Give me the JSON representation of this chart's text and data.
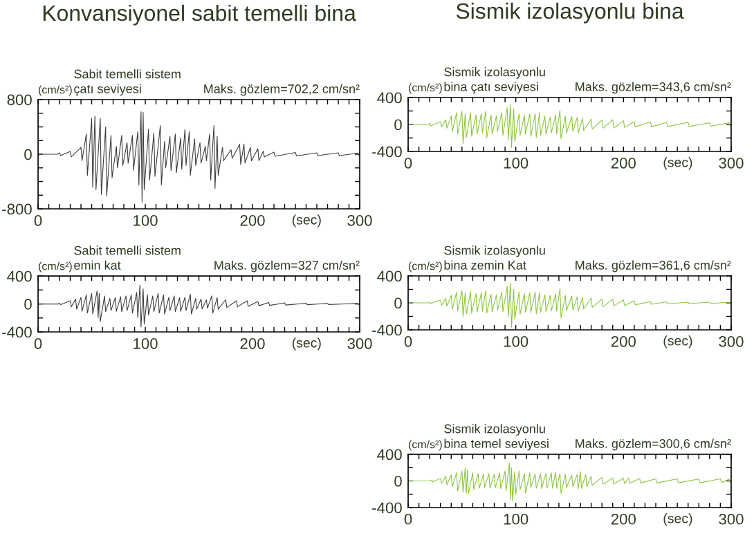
{
  "chart_data": [
    {
      "type": "line",
      "title": "Konvansiyonel sabit temelli bina",
      "subtitle": "Sabit temelli sistem\nçatı seviyesi",
      "ylabel": "(cm/s²)",
      "xlabel": "(sec)",
      "annotations": [
        "Maks. gözlem=702,2 cm/sn²"
      ],
      "xlim": [
        0,
        300
      ],
      "ylim": [
        -800,
        800
      ],
      "xticks": [
        0,
        {
          "value": 10,
          "label": null
        },
        {
          "value": 20,
          "label": null
        },
        {
          "value": 30,
          "label": null
        },
        {
          "value": 40,
          "label": null
        },
        {
          "value": 50,
          "label": null
        },
        {
          "value": 60,
          "label": null
        },
        {
          "value": 70,
          "label": null
        },
        {
          "value": 80,
          "label": null
        },
        {
          "value": 90,
          "label": null
        },
        100,
        {
          "value": 110,
          "label": null
        },
        {
          "value": 120,
          "label": null
        },
        {
          "value": 130,
          "label": null
        },
        {
          "value": 140,
          "label": null
        },
        {
          "value": 150,
          "label": null
        },
        {
          "value": 160,
          "label": null
        },
        {
          "value": 170,
          "label": null
        },
        {
          "value": 180,
          "label": null
        },
        {
          "value": 190,
          "label": null
        },
        200,
        {
          "value": 210,
          "label": null
        },
        {
          "value": 220,
          "label": null
        },
        {
          "value": 230,
          "label": null
        },
        {
          "value": 240,
          "label": null
        },
        {
          "value": 250,
          "label": null
        },
        {
          "value": 260,
          "label": null
        },
        {
          "value": 270,
          "label": null
        },
        {
          "value": 280,
          "label": null
        },
        {
          "value": 290,
          "label": null
        },
        300
      ],
      "yticks": [
        -800,
        {
          "value": -600,
          "label": null
        },
        {
          "value": -400,
          "label": null
        },
        {
          "value": -200,
          "label": null
        },
        0,
        {
          "value": 200,
          "label": null
        },
        {
          "value": 400,
          "label": null
        },
        {
          "value": 600,
          "label": null
        },
        800
      ],
      "series": [
        {
          "color": "#3d3d3d",
          "x": [
            0,
            18,
            20,
            21,
            30,
            31,
            40,
            41,
            45,
            46,
            50,
            51,
            53,
            54,
            58,
            59,
            63,
            64,
            68,
            69,
            73,
            74,
            78,
            79,
            83,
            84,
            88,
            89,
            93,
            94,
            96,
            97,
            98,
            99,
            103,
            104,
            108,
            109,
            114,
            115,
            118,
            119,
            123,
            124,
            128,
            129,
            133,
            134,
            137,
            138,
            141,
            142,
            146,
            147,
            151,
            152,
            156,
            157,
            160,
            161,
            164,
            165,
            167,
            168,
            172,
            173,
            180,
            181,
            188,
            189,
            192,
            193,
            198,
            199,
            205,
            206,
            210,
            211,
            220,
            221,
            240,
            241,
            260,
            261,
            280,
            281,
            298,
            299
          ],
          "values": [
            0,
            0,
            20,
            -20,
            40,
            -40,
            100,
            -95,
            295,
            -310,
            525,
            -485,
            560,
            -520,
            525,
            -590,
            400,
            -610,
            275,
            -345,
            115,
            -200,
            275,
            -165,
            170,
            -130,
            275,
            -235,
            330,
            -450,
            623,
            -700,
            612,
            -520,
            365,
            -380,
            310,
            -325,
            420,
            -450,
            190,
            -200,
            260,
            -240,
            295,
            -270,
            240,
            -220,
            365,
            -165,
            330,
            -310,
            225,
            -165,
            170,
            -130,
            115,
            -95,
            295,
            -380,
            420,
            -500,
            260,
            -310,
            100,
            -95,
            65,
            -60,
            145,
            -150,
            150,
            -130,
            100,
            -95,
            80,
            -95,
            45,
            -40,
            30,
            -30,
            25,
            -25,
            20,
            -20,
            20,
            -20,
            15,
            -15
          ]
        }
      ]
    },
    {
      "type": "line",
      "title": "Sismik izolasyonlu bina",
      "subtitle": "Sismik izolasyonlu\nbina çatı seviyesi",
      "ylabel": "(cm/s²)",
      "xlabel": "(sec)",
      "annotations": [
        "Maks. gözlem=343,6 cm/sn²"
      ],
      "xlim": [
        0,
        300
      ],
      "ylim": [
        -400,
        400
      ],
      "xticks": [
        0,
        {
          "value": 10,
          "label": null
        },
        {
          "value": 20,
          "label": null
        },
        {
          "value": 30,
          "label": null
        },
        {
          "value": 40,
          "label": null
        },
        {
          "value": 50,
          "label": null
        },
        {
          "value": 60,
          "label": null
        },
        {
          "value": 70,
          "label": null
        },
        {
          "value": 80,
          "label": null
        },
        {
          "value": 90,
          "label": null
        },
        100,
        {
          "value": 110,
          "label": null
        },
        {
          "value": 120,
          "label": null
        },
        {
          "value": 130,
          "label": null
        },
        {
          "value": 140,
          "label": null
        },
        {
          "value": 150,
          "label": null
        },
        {
          "value": 160,
          "label": null
        },
        {
          "value": 170,
          "label": null
        },
        {
          "value": 180,
          "label": null
        },
        {
          "value": 190,
          "label": null
        },
        200,
        {
          "value": 210,
          "label": null
        },
        {
          "value": 220,
          "label": null
        },
        {
          "value": 230,
          "label": null
        },
        {
          "value": 240,
          "label": null
        },
        {
          "value": 250,
          "label": null
        },
        {
          "value": 260,
          "label": null
        },
        {
          "value": 270,
          "label": null
        },
        {
          "value": 280,
          "label": null
        },
        {
          "value": 290,
          "label": null
        },
        300
      ],
      "yticks": [
        -400,
        {
          "value": -200,
          "label": null
        },
        0,
        {
          "value": 200,
          "label": null
        },
        400
      ],
      "series": [
        {
          "color": "#8cc63f",
          "x": [
            0,
            19,
            20,
            21,
            30,
            31,
            35,
            36,
            40,
            41,
            45,
            46,
            50,
            51,
            53,
            54,
            58,
            59,
            63,
            64,
            68,
            69,
            72,
            73,
            77,
            78,
            82,
            83,
            87,
            88,
            92,
            93,
            95,
            96,
            98,
            99,
            103,
            104,
            108,
            109,
            113,
            114,
            118,
            119,
            122,
            123,
            127,
            128,
            132,
            133,
            137,
            138,
            141,
            142,
            146,
            147,
            152,
            153,
            157,
            158,
            162,
            163,
            170,
            171,
            180,
            181,
            190,
            191,
            200,
            201,
            210,
            211,
            225,
            226,
            240,
            241,
            260,
            261,
            280,
            281,
            298,
            299
          ],
          "values": [
            0,
            0,
            20,
            -20,
            40,
            -35,
            70,
            -55,
            125,
            -105,
            175,
            -140,
            195,
            -283,
            160,
            -195,
            175,
            -175,
            140,
            -140,
            160,
            -125,
            195,
            -195,
            140,
            -140,
            125,
            -105,
            175,
            -160,
            250,
            -230,
            300,
            -340,
            230,
            -250,
            160,
            -160,
            140,
            -140,
            160,
            -175,
            160,
            -195,
            175,
            -160,
            125,
            -140,
            115,
            -125,
            140,
            -140,
            210,
            -210,
            125,
            -125,
            115,
            -105,
            105,
            -125,
            90,
            -90,
            80,
            -70,
            65,
            -55,
            70,
            -55,
            55,
            -45,
            40,
            -35,
            35,
            -35,
            30,
            -30,
            30,
            -30,
            25,
            -25,
            25,
            -25
          ]
        }
      ]
    },
    {
      "type": "line",
      "subtitle": "Sabit temelli sistem\nemin kat",
      "ylabel": "(cm/s²)",
      "xlabel": "(sec)",
      "annotations": [
        "Maks. gözlem=327 cm/sn²"
      ],
      "xlim": [
        0,
        300
      ],
      "ylim": [
        -400,
        400
      ],
      "xticks": [
        0,
        {
          "value": 10,
          "label": null
        },
        {
          "value": 20,
          "label": null
        },
        {
          "value": 30,
          "label": null
        },
        {
          "value": 40,
          "label": null
        },
        {
          "value": 50,
          "label": null
        },
        {
          "value": 60,
          "label": null
        },
        {
          "value": 70,
          "label": null
        },
        {
          "value": 80,
          "label": null
        },
        {
          "value": 90,
          "label": null
        },
        100,
        {
          "value": 110,
          "label": null
        },
        {
          "value": 120,
          "label": null
        },
        {
          "value": 130,
          "label": null
        },
        {
          "value": 140,
          "label": null
        },
        {
          "value": 150,
          "label": null
        },
        {
          "value": 160,
          "label": null
        },
        {
          "value": 170,
          "label": null
        },
        {
          "value": 180,
          "label": null
        },
        {
          "value": 190,
          "label": null
        },
        200,
        {
          "value": 210,
          "label": null
        },
        {
          "value": 220,
          "label": null
        },
        {
          "value": 230,
          "label": null
        },
        {
          "value": 240,
          "label": null
        },
        {
          "value": 250,
          "label": null
        },
        {
          "value": 260,
          "label": null
        },
        {
          "value": 270,
          "label": null
        },
        {
          "value": 280,
          "label": null
        },
        {
          "value": 290,
          "label": null
        },
        300
      ],
      "yticks": [
        -400,
        {
          "value": -200,
          "label": null
        },
        0,
        {
          "value": 200,
          "label": null
        },
        400
      ],
      "series": [
        {
          "color": "#3d3d3d",
          "x": [
            0,
            19,
            20,
            21,
            30,
            31,
            35,
            36,
            40,
            41,
            45,
            46,
            50,
            51,
            55,
            56,
            57,
            58,
            62,
            63,
            67,
            68,
            72,
            73,
            77,
            78,
            82,
            83,
            87,
            88,
            92,
            93,
            95,
            96,
            98,
            99,
            102,
            103,
            107,
            108,
            112,
            113,
            117,
            118,
            122,
            123,
            127,
            128,
            132,
            133,
            137,
            138,
            142,
            143,
            147,
            148,
            152,
            153,
            157,
            158,
            162,
            163,
            167,
            168,
            175,
            176,
            185,
            186,
            195,
            196,
            205,
            206,
            215,
            216,
            230,
            231,
            250,
            251,
            270,
            271,
            298,
            299
          ],
          "values": [
            0,
            0,
            10,
            -10,
            45,
            -40,
            70,
            -75,
            95,
            -105,
            130,
            -130,
            150,
            -145,
            185,
            -195,
            150,
            -250,
            115,
            -110,
            80,
            -95,
            90,
            -105,
            105,
            -110,
            115,
            -95,
            130,
            -130,
            165,
            -195,
            270,
            -327,
            215,
            -285,
            130,
            -160,
            115,
            -110,
            150,
            -130,
            130,
            -145,
            95,
            -95,
            115,
            -110,
            90,
            -105,
            95,
            -95,
            140,
            -145,
            80,
            -75,
            70,
            -70,
            60,
            -60,
            115,
            -130,
            90,
            -75,
            60,
            -50,
            45,
            -40,
            45,
            -35,
            35,
            -25,
            20,
            -20,
            15,
            -15,
            10,
            -10,
            8,
            -8,
            8,
            -8
          ]
        }
      ]
    },
    {
      "type": "line",
      "subtitle": "Sismik izolasyonlu\nbina zemin Kat",
      "ylabel": "(cm/s²)",
      "xlabel": "(sec)",
      "annotations": [
        "Maks. gözlem=361,6 cm/sn²"
      ],
      "xlim": [
        0,
        300
      ],
      "ylim": [
        -400,
        400
      ],
      "xticks": [
        0,
        {
          "value": 10,
          "label": null
        },
        {
          "value": 20,
          "label": null
        },
        {
          "value": 30,
          "label": null
        },
        {
          "value": 40,
          "label": null
        },
        {
          "value": 50,
          "label": null
        },
        {
          "value": 60,
          "label": null
        },
        {
          "value": 70,
          "label": null
        },
        {
          "value": 80,
          "label": null
        },
        {
          "value": 90,
          "label": null
        },
        100,
        {
          "value": 110,
          "label": null
        },
        {
          "value": 120,
          "label": null
        },
        {
          "value": 130,
          "label": null
        },
        {
          "value": 140,
          "label": null
        },
        {
          "value": 150,
          "label": null
        },
        {
          "value": 160,
          "label": null
        },
        {
          "value": 170,
          "label": null
        },
        {
          "value": 180,
          "label": null
        },
        {
          "value": 190,
          "label": null
        },
        200,
        {
          "value": 210,
          "label": null
        },
        {
          "value": 220,
          "label": null
        },
        {
          "value": 230,
          "label": null
        },
        {
          "value": 240,
          "label": null
        },
        {
          "value": 250,
          "label": null
        },
        {
          "value": 260,
          "label": null
        },
        {
          "value": 270,
          "label": null
        },
        {
          "value": 280,
          "label": null
        },
        {
          "value": 290,
          "label": null
        },
        300
      ],
      "yticks": [
        -400,
        {
          "value": -200,
          "label": null
        },
        0,
        {
          "value": 200,
          "label": null
        },
        400
      ],
      "series": [
        {
          "color": "#8cc63f",
          "x": [
            0,
            19,
            20,
            21,
            30,
            31,
            35,
            36,
            40,
            41,
            45,
            46,
            50,
            51,
            53,
            54,
            58,
            59,
            63,
            64,
            68,
            69,
            72,
            73,
            77,
            78,
            82,
            83,
            87,
            88,
            92,
            93,
            95,
            96,
            98,
            99,
            103,
            104,
            108,
            109,
            113,
            114,
            118,
            119,
            122,
            123,
            127,
            128,
            132,
            133,
            137,
            138,
            141,
            142,
            146,
            147,
            152,
            153,
            157,
            158,
            162,
            163,
            170,
            171,
            180,
            181,
            190,
            191,
            200,
            201,
            210,
            211,
            225,
            226,
            240,
            241,
            260,
            261,
            280,
            281,
            298,
            299
          ],
          "values": [
            0,
            0,
            10,
            -10,
            40,
            -35,
            65,
            -50,
            110,
            -95,
            160,
            -120,
            185,
            -200,
            150,
            -165,
            165,
            -155,
            140,
            -135,
            150,
            -125,
            180,
            -150,
            130,
            -130,
            120,
            -110,
            160,
            -130,
            240,
            -210,
            295,
            -360,
            200,
            -240,
            160,
            -170,
            140,
            -140,
            150,
            -140,
            160,
            -165,
            150,
            -140,
            120,
            -130,
            110,
            -120,
            130,
            -125,
            210,
            -225,
            110,
            -115,
            100,
            -110,
            90,
            -120,
            80,
            -90,
            70,
            -70,
            60,
            -55,
            55,
            -45,
            45,
            -40,
            30,
            -30,
            20,
            -20,
            15,
            -15,
            10,
            -10,
            10,
            -10,
            10,
            -10
          ]
        }
      ]
    },
    {
      "type": "line",
      "subtitle": "Sismik izolasyonlu\nbina temel seviyesi",
      "ylabel": "(cm/s²)",
      "xlabel": "(sec)",
      "annotations": [
        "Maks. gözlem=300,6 cm/sn²"
      ],
      "xlim": [
        0,
        300
      ],
      "ylim": [
        -400,
        400
      ],
      "xticks": [
        0,
        {
          "value": 10,
          "label": null
        },
        {
          "value": 20,
          "label": null
        },
        {
          "value": 30,
          "label": null
        },
        {
          "value": 40,
          "label": null
        },
        {
          "value": 50,
          "label": null
        },
        {
          "value": 60,
          "label": null
        },
        {
          "value": 70,
          "label": null
        },
        {
          "value": 80,
          "label": null
        },
        {
          "value": 90,
          "label": null
        },
        100,
        {
          "value": 110,
          "label": null
        },
        {
          "value": 120,
          "label": null
        },
        {
          "value": 130,
          "label": null
        },
        {
          "value": 140,
          "label": null
        },
        {
          "value": 150,
          "label": null
        },
        {
          "value": 160,
          "label": null
        },
        {
          "value": 170,
          "label": null
        },
        {
          "value": 180,
          "label": null
        },
        {
          "value": 190,
          "label": null
        },
        200,
        {
          "value": 210,
          "label": null
        },
        {
          "value": 220,
          "label": null
        },
        {
          "value": 230,
          "label": null
        },
        {
          "value": 240,
          "label": null
        },
        {
          "value": 250,
          "label": null
        },
        {
          "value": 260,
          "label": null
        },
        {
          "value": 270,
          "label": null
        },
        {
          "value": 280,
          "label": null
        },
        {
          "value": 290,
          "label": null
        },
        300
      ],
      "yticks": [
        -400,
        {
          "value": -200,
          "label": null
        },
        0,
        {
          "value": 200,
          "label": null
        },
        400
      ],
      "series": [
        {
          "color": "#8cc63f",
          "x": [
            0,
            20,
            22,
            23,
            30,
            31,
            35,
            36,
            40,
            41,
            45,
            46,
            50,
            51,
            53,
            54,
            55,
            56,
            60,
            61,
            65,
            66,
            70,
            71,
            75,
            76,
            80,
            81,
            85,
            86,
            90,
            91,
            94,
            95,
            96,
            97,
            99,
            100,
            103,
            104,
            108,
            109,
            113,
            114,
            118,
            119,
            123,
            124,
            128,
            129,
            133,
            134,
            137,
            138,
            141,
            142,
            146,
            147,
            152,
            153,
            157,
            158,
            160,
            161,
            165,
            166,
            170,
            171,
            180,
            181,
            190,
            191,
            200,
            201,
            205,
            206,
            215,
            216,
            230,
            231,
            250,
            251,
            270,
            271,
            290,
            291,
            298,
            299
          ],
          "values": [
            0,
            0,
            15,
            -15,
            40,
            -35,
            70,
            -60,
            90,
            -90,
            125,
            -150,
            150,
            -170,
            200,
            -190,
            160,
            -185,
            120,
            -130,
            110,
            -110,
            105,
            -100,
            110,
            -110,
            105,
            -100,
            120,
            -115,
            150,
            -145,
            270,
            -280,
            200,
            -300,
            140,
            -200,
            150,
            -130,
            110,
            -180,
            120,
            -100,
            105,
            -110,
            110,
            -115,
            115,
            -105,
            120,
            -110,
            130,
            -110,
            110,
            -190,
            100,
            -100,
            90,
            -90,
            100,
            -120,
            140,
            -110,
            95,
            -85,
            70,
            -70,
            55,
            -50,
            45,
            -45,
            40,
            -40,
            45,
            -35,
            35,
            -30,
            30,
            -30,
            30,
            -28,
            28,
            -28,
            30,
            -25,
            25,
            -25
          ]
        }
      ]
    }
  ]
}
